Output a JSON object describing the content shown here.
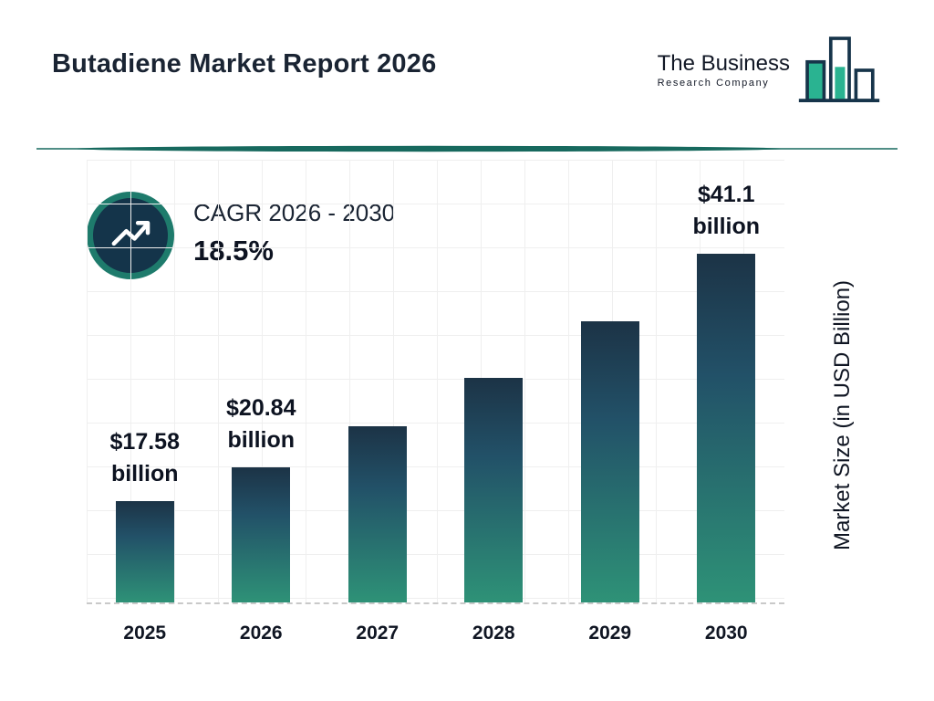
{
  "header": {
    "title": "Butadiene Market Report 2026",
    "logo": {
      "line1": "The Business",
      "line2": "Research Company"
    }
  },
  "cagr": {
    "label": "CAGR 2026 - 2030",
    "value": "18.5%"
  },
  "y_axis_label": "Market Size (in USD Billion)",
  "colors": {
    "bar_top": "#1c3346",
    "bar_bottom": "#2e9277",
    "accent_teal": "#1e7b6c",
    "logo_teal": "#2ab391",
    "text_dark": "#1a2433"
  },
  "chart_data": {
    "type": "bar",
    "title": "Butadiene Market Report 2026",
    "categories": [
      "2025",
      "2026",
      "2027",
      "2028",
      "2029",
      "2030"
    ],
    "values": [
      17.58,
      20.84,
      24.7,
      29.27,
      34.68,
      41.1
    ],
    "value_labels": {
      "2025": [
        "$17.58",
        "billion"
      ],
      "2026": [
        "$20.84",
        "billion"
      ],
      "2030": [
        "$41.1",
        "billion"
      ]
    },
    "xlabel": "",
    "ylabel": "Market Size (in USD Billion)",
    "ylim": [
      8,
      50
    ],
    "grid": true,
    "legend": "none",
    "cagr_label": "CAGR 2026 - 2030",
    "cagr_value": "18.5%"
  }
}
